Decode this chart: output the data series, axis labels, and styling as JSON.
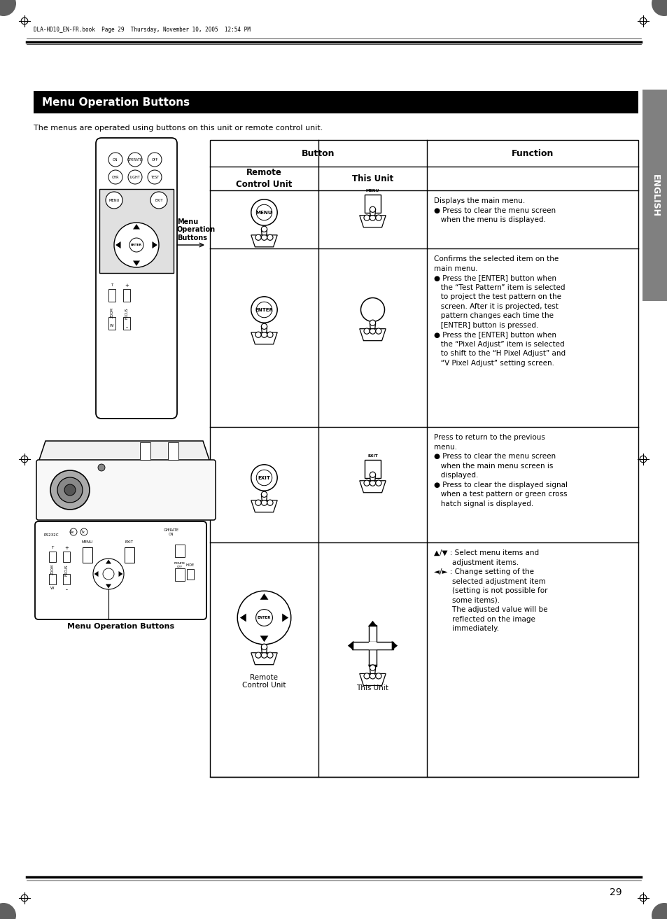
{
  "page_num": "29",
  "header_text": "DLA-HD10_EN-FR.book  Page 29  Thursday, November 10, 2005  12:54 PM",
  "section_title": "Menu Operation Buttons",
  "intro_text": "The menus are operated using buttons on this unit or remote control unit.",
  "english_tab": "ENGLISH",
  "table_header_button": "Button",
  "table_subheader_col1": "Remote\nControl Unit",
  "table_subheader_col2": "This Unit",
  "table_subheader_col3": "Function",
  "label_menu_op": "Menu\nOperation\nButtons",
  "label_menu_op_bottom": "Menu Operation Buttons",
  "row1_line1": "Displays the main menu.",
  "row1_bullet1": "● Press to clear the menu screen",
  "row1_bullet1b": "   when the menu is displayed.",
  "row2_line1": "Confirms the selected item on the",
  "row2_line2": "main menu.",
  "row2_bullet1": "● Press the [ENTER] button when",
  "row2_bullet1b": "   the “Test Pattern” item is selected",
  "row2_bullet1c": "   to project the test pattern on the",
  "row2_bullet1d": "   screen. After it is projected, test",
  "row2_bullet1e": "   pattern changes each time the",
  "row2_bullet1f": "   [ENTER] button is pressed.",
  "row2_bullet2": "● Press the [ENTER] button when",
  "row2_bullet2b": "   the “Pixel Adjust” item is selected",
  "row2_bullet2c": "   to shift to the “H Pixel Adjust” and",
  "row2_bullet2d": "   “V Pixel Adjust” setting screen.",
  "row3_line1": "Press to return to the previous",
  "row3_line2": "menu.",
  "row3_bullet1": "● Press to clear the menu screen",
  "row3_bullet1b": "   when the main menu screen is",
  "row3_bullet1c": "   displayed.",
  "row3_bullet2": "● Press to clear the displayed signal",
  "row3_bullet2b": "   when a test pattern or green cross",
  "row3_bullet2c": "   hatch signal is displayed.",
  "row4_bullet1": "▲/▼ : Select menu items and",
  "row4_bullet1b": "        adjustment items.",
  "row4_bullet2": "◄/► : Change setting of the",
  "row4_bullet2b": "        selected adjustment item",
  "row4_bullet2c": "        (setting is not possible for",
  "row4_bullet2d": "        some items).",
  "row4_bullet2e": "        The adjusted value will be",
  "row4_bullet2f": "        reflected on the image",
  "row4_bullet2g": "        immediately.",
  "remote_control_label": "Remote\nControl Unit",
  "this_unit_label": "This Unit",
  "bg_color": "#ffffff"
}
